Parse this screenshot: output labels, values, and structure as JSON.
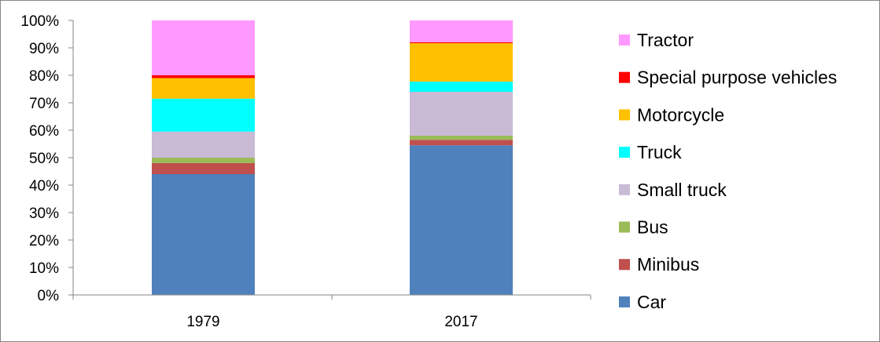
{
  "chart_data": {
    "type": "bar",
    "stacked": true,
    "percent_stacked": true,
    "categories": [
      "1979",
      "2017"
    ],
    "series": [
      {
        "name": "Car",
        "color": "#4F81BD",
        "values": [
          44,
          54.5
        ]
      },
      {
        "name": "Minibus",
        "color": "#C0504D",
        "values": [
          4,
          2
        ]
      },
      {
        "name": "Bus",
        "color": "#9BBB59",
        "values": [
          2,
          1.5
        ]
      },
      {
        "name": "Small truck",
        "color": "#C9BAD6",
        "values": [
          9.5,
          16
        ]
      },
      {
        "name": "Truck",
        "color": "#00FFFF",
        "values": [
          12,
          3.7
        ]
      },
      {
        "name": "Motorcycle",
        "color": "#FFC000",
        "values": [
          7.5,
          14
        ]
      },
      {
        "name": "Special purpose vehicles",
        "color": "#FF0000",
        "values": [
          1,
          0.3
        ]
      },
      {
        "name": "Tractor",
        "color": "#FF99FF",
        "values": [
          20,
          8
        ]
      }
    ],
    "yticks": [
      "0%",
      "10%",
      "20%",
      "30%",
      "40%",
      "50%",
      "60%",
      "70%",
      "80%",
      "90%",
      "100%"
    ],
    "ylim": [
      0,
      100
    ],
    "title": "",
    "xlabel": "",
    "ylabel": "",
    "grid": false,
    "legend": "right",
    "legend_order": "reversed"
  }
}
